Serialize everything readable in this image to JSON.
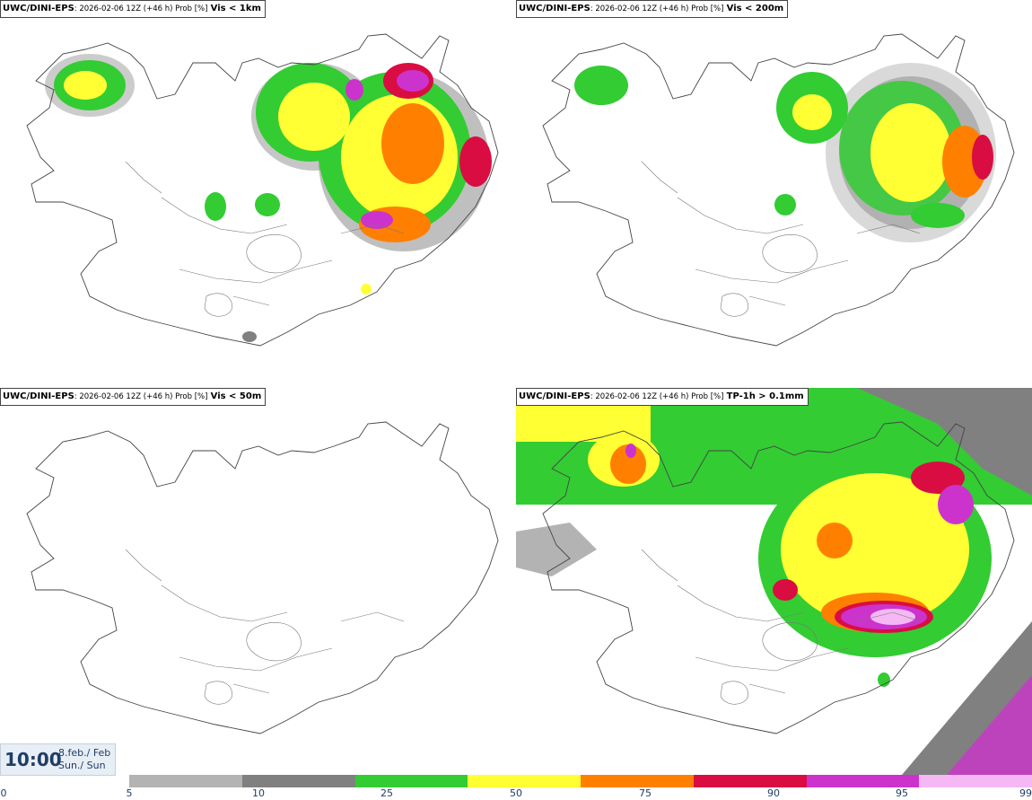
{
  "panels": [
    {
      "source": "UWC/DINI-EPS",
      "meta": ": 2026-02-06 12Z (+46 h) Prob [%]",
      "variable": "Vis < 1km"
    },
    {
      "source": "UWC/DINI-EPS",
      "meta": ": 2026-02-06 12Z (+46 h) Prob [%]",
      "variable": "Vis < 200m"
    },
    {
      "source": "UWC/DINI-EPS",
      "meta": ": 2026-02-06 12Z (+46 h) Prob [%]",
      "variable": "Vis < 50m"
    },
    {
      "source": "UWC/DINI-EPS",
      "meta": ": 2026-02-06 12Z (+46 h) Prob [%]",
      "variable": "TP-1h > 0.1mm"
    }
  ],
  "time": {
    "clock": "10:00",
    "date_line1": "8.feb./ Feb",
    "date_line2": "Sun./ Sun"
  },
  "legend": {
    "ticks": [
      "0",
      "5",
      "10",
      "25",
      "50",
      "75",
      "90",
      "95",
      "99"
    ],
    "colors": [
      "#b3b3b3",
      "#808080",
      "#33cc33",
      "#ffff33",
      "#ff8000",
      "#d90d42",
      "#cc33cc",
      "#f5b8f5"
    ]
  }
}
